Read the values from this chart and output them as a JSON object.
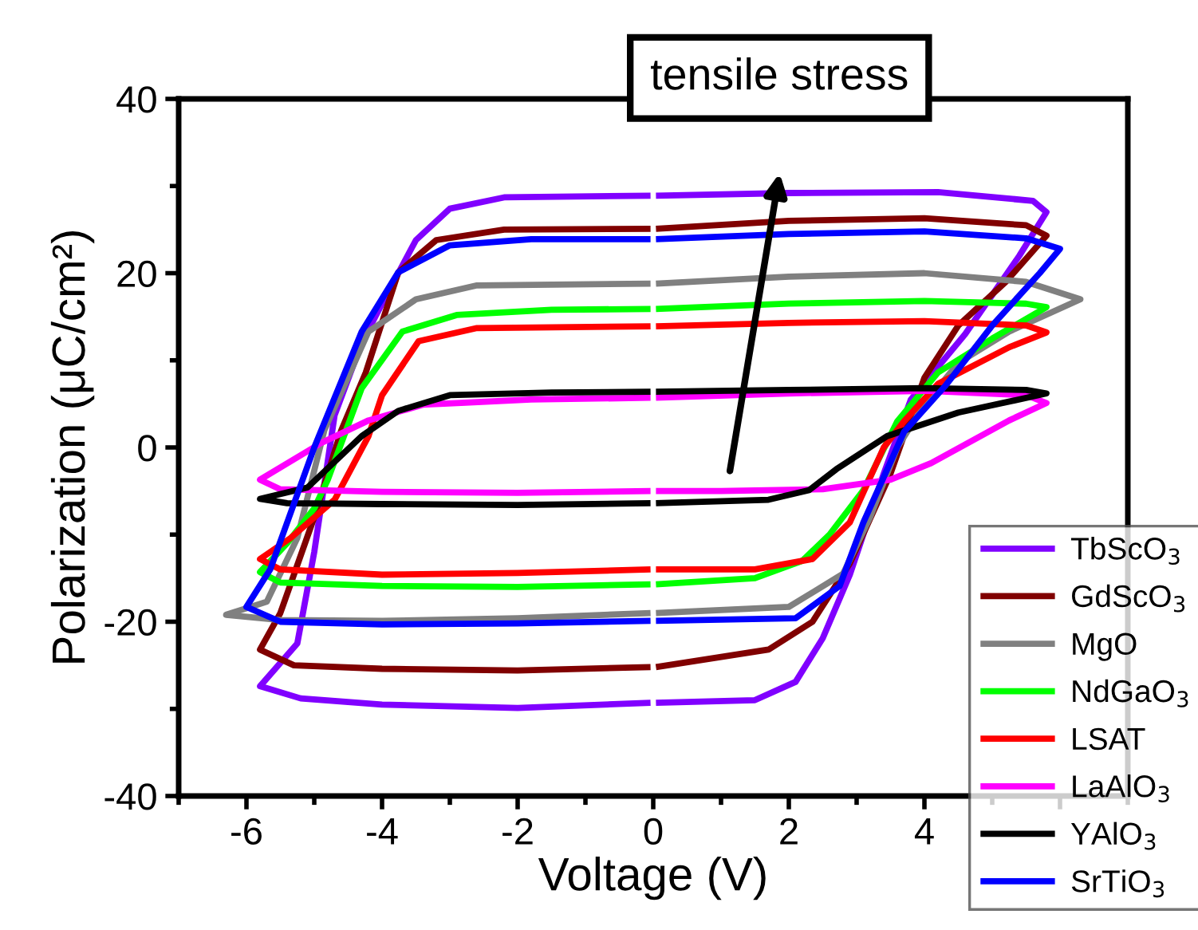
{
  "chart_data": {
    "type": "line",
    "xlabel": "Voltage (V)",
    "ylabel": "Polarization (μC/cm²)",
    "xlim": [
      -7,
      7
    ],
    "xticks": [
      -6,
      -4,
      -2,
      0,
      2,
      4,
      {
        "value": 6,
        "label": null
      }
    ],
    "ylim": [
      -40,
      40
    ],
    "yticks": [
      -40,
      -20,
      0,
      20,
      40
    ],
    "grid": false,
    "legend": "bottom right",
    "line_style": "solid",
    "marker": "none",
    "annotations": [
      "tensile stress"
    ],
    "series": [
      {
        "name": "TbScO$_{3}$",
        "color": "#8000ff",
        "x": [
          0.04,
          2,
          4.2,
          5.6,
          5.8,
          5.4,
          4.6,
          3.8,
          3.4,
          2.9,
          2.5,
          2.1,
          1.5,
          0.04
        ],
        "values": [
          28.9,
          29.2,
          29.3,
          28.3,
          27,
          22,
          13,
          5.5,
          -3,
          -14.6,
          -21.9,
          -26.9,
          -29.0,
          -29.3
        ]
      },
      {
        "color": "#8000ff",
        "x": [
          -0.04,
          -2,
          -4,
          -5.2,
          -5.8,
          -5.25,
          -5.0,
          -4.7,
          -4.3,
          -4.0,
          -3.5,
          -3.0,
          -2.2,
          -0.04
        ],
        "values": [
          -29.3,
          -29.9,
          -29.5,
          -28.8,
          -27.4,
          -22.5,
          -12,
          3.7,
          12,
          16.5,
          23.8,
          27.4,
          28.7,
          28.9
        ]
      },
      {
        "name": "GdScO$_{3}$",
        "color": "#800000",
        "x": [
          0.04,
          2,
          4,
          5.5,
          5.8,
          5.2,
          4.5,
          4.0,
          3.5,
          2.9,
          2.35,
          1.7,
          0.04
        ],
        "values": [
          25.1,
          26,
          26.3,
          25.5,
          24.3,
          19,
          14,
          8,
          -3,
          -13.3,
          -20,
          -23.2,
          -25.2
        ]
      },
      {
        "color": "#800000",
        "x": [
          -0.04,
          -2,
          -4,
          -5.3,
          -5.8,
          -5.5,
          -5.0,
          -4.6,
          -4.24,
          -3.76,
          -3.2,
          -2.2,
          -0.04
        ],
        "values": [
          -25.2,
          -25.6,
          -25.4,
          -25,
          -23.2,
          -19,
          -8,
          2,
          8.6,
          20.1,
          23.8,
          25,
          25.1
        ]
      },
      {
        "name": "MgO",
        "color": "#808080",
        "x": [
          0.04,
          2,
          4,
          5.5,
          6.3,
          5.25,
          4.5,
          4.0,
          3.6,
          3.2,
          2.8,
          2.0,
          0.04
        ],
        "values": [
          18.8,
          19.6,
          20,
          19,
          17,
          13.3,
          9.7,
          4.9,
          0,
          -8,
          -14.5,
          -18.3,
          -19.0
        ]
      },
      {
        "color": "#808080",
        "x": [
          -0.04,
          -2,
          -4,
          -5.5,
          -6.3,
          -5.7,
          -5.25,
          -4.85,
          -4.2,
          -3.5,
          -2.6,
          -0.04
        ],
        "values": [
          -19.0,
          -19.6,
          -19.9,
          -19.8,
          -19.2,
          -17.7,
          -10.4,
          2,
          13.3,
          17,
          18.6,
          18.8
        ]
      },
      {
        "name": "NdGaO$_{3}$",
        "color": "#00ff00",
        "x": [
          0.04,
          2,
          4,
          5.5,
          5.8,
          5.0,
          4.2,
          3.6,
          3.1,
          2.6,
          2.2,
          1.5,
          0.04
        ],
        "values": [
          15.9,
          16.5,
          16.8,
          16.5,
          16.1,
          12.5,
          8.6,
          3,
          -4.9,
          -10,
          -13,
          -15,
          -15.7
        ]
      },
      {
        "color": "#00ff00",
        "x": [
          -0.04,
          -2,
          -4,
          -5.5,
          -5.8,
          -5.4,
          -5.0,
          -4.8,
          -4.3,
          -3.7,
          -2.9,
          -1.5,
          -0.04
        ],
        "values": [
          -15.7,
          -16,
          -15.9,
          -15.5,
          -14.3,
          -11,
          -7,
          -3.7,
          6.8,
          13.3,
          15.2,
          15.8,
          15.9
        ]
      },
      {
        "name": "LSAT",
        "color": "#ff0000",
        "x": [
          0.04,
          2,
          4,
          5.5,
          5.8,
          5.25,
          4.2,
          3.7,
          3.4,
          2.9,
          2.35,
          1.5,
          0.04
        ],
        "values": [
          13.9,
          14.3,
          14.5,
          14,
          13.2,
          11.5,
          7.3,
          3,
          0,
          -8.6,
          -12.8,
          -14,
          -14.0
        ]
      },
      {
        "color": "#ff0000",
        "x": [
          -0.04,
          -2,
          -4,
          -5.5,
          -5.8,
          -5.35,
          -4.7,
          -4.2,
          -4.0,
          -3.46,
          -2.6,
          -0.04
        ],
        "values": [
          -14.0,
          -14.4,
          -14.6,
          -14,
          -12.8,
          -10.4,
          -6,
          1.3,
          6,
          12.2,
          13.7,
          13.9
        ]
      },
      {
        "name": "LaAlO$_{3}$",
        "color": "#ff00ff",
        "x": [
          0.04,
          2,
          4,
          5.5,
          5.8,
          5.25,
          4.1,
          3.5,
          2.5,
          1.0,
          0.04
        ],
        "values": [
          5.7,
          6.2,
          6.5,
          6.0,
          5.1,
          3.1,
          -1.8,
          -3.7,
          -4.8,
          -5.0,
          -5.0
        ]
      },
      {
        "color": "#ff00ff",
        "x": [
          -0.04,
          -2,
          -4,
          -5.5,
          -5.8,
          -4.9,
          -4.2,
          -3.4,
          -1.8,
          -0.04
        ],
        "values": [
          -5.0,
          -5.2,
          -5.1,
          -4.8,
          -3.7,
          0.5,
          3.1,
          4.9,
          5.5,
          5.7
        ]
      },
      {
        "name": "YAlO$_{3}$",
        "color": "#000000",
        "x": [
          0.04,
          2,
          4,
          5.5,
          5.8,
          4.5,
          3.45,
          2.7,
          2.3,
          1.7,
          0.04
        ],
        "values": [
          6.4,
          6.6,
          6.8,
          6.6,
          6.2,
          4.0,
          1.3,
          -2.5,
          -4.9,
          -6.0,
          -6.4
        ]
      },
      {
        "color": "#000000",
        "x": [
          -0.04,
          -2,
          -4,
          -5.4,
          -5.8,
          -5.1,
          -4.3,
          -3.76,
          -3.0,
          -1.5,
          -0.04
        ],
        "values": [
          -6.4,
          -6.6,
          -6.5,
          -6.4,
          -5.9,
          -4.6,
          1.3,
          4.2,
          6.0,
          6.3,
          6.4
        ]
      },
      {
        "name": "SrTiO$_{3}$",
        "color": "#0000ff",
        "x": [
          0.04,
          2,
          4,
          5.5,
          6.0,
          5.7,
          5.0,
          4.3,
          3.7,
          3.1,
          2.75,
          2.1,
          0.04
        ],
        "values": [
          23.9,
          24.5,
          24.8,
          24,
          22.8,
          20,
          14,
          7,
          1.8,
          -8.6,
          -15.9,
          -19.6,
          -19.9
        ]
      },
      {
        "color": "#0000ff",
        "x": [
          -0.04,
          -2,
          -4,
          -5.5,
          -6.0,
          -5.65,
          -5.0,
          -4.3,
          -3.76,
          -3.0,
          -1.8,
          -0.04
        ],
        "values": [
          -19.9,
          -20.2,
          -20.3,
          -20,
          -18.3,
          -14,
          0,
          13.3,
          20.1,
          23.2,
          23.9,
          23.9
        ]
      }
    ]
  }
}
